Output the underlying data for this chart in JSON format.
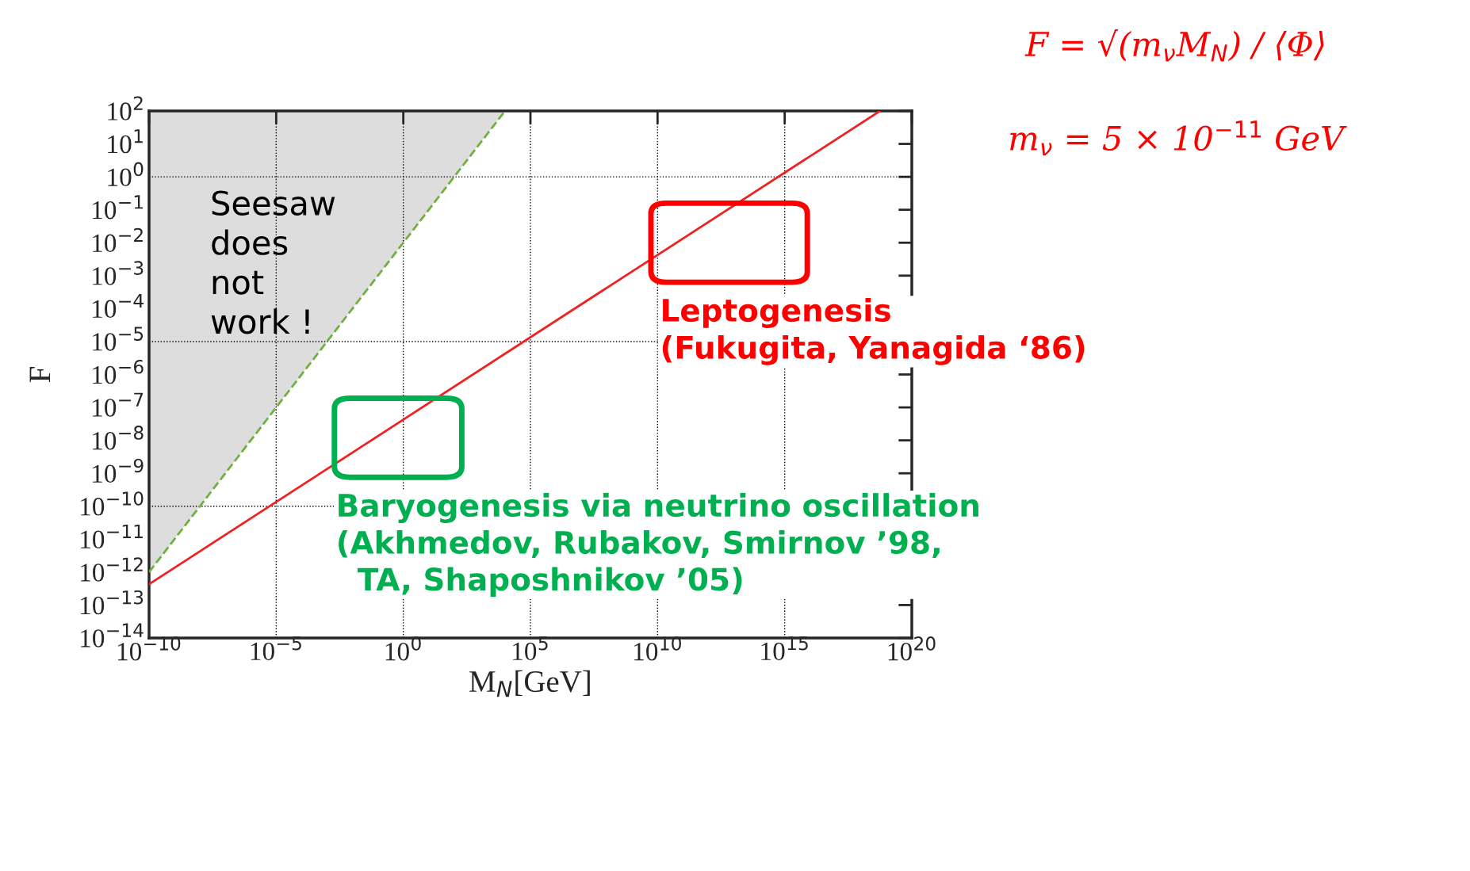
{
  "chart_data": {
    "type": "line",
    "xlabel": "M$_{N}$[GeV]",
    "ylabel": "F",
    "log": "xy",
    "grid": "x",
    "xlim": [
      1e-10,
      1e+20
    ],
    "ylim": [
      1e-14,
      100.0
    ],
    "xticks": [
      {
        "value": 1e-10,
        "label": "10$^{−10}$"
      },
      {
        "value": 1e-05,
        "label": "10$^{−5}$"
      },
      {
        "value": 1,
        "label": "10$^{0}$"
      },
      {
        "value": 100000.0,
        "label": "10$^{5}$"
      },
      {
        "value": 10000000000.0,
        "label": "10$^{10}$"
      },
      {
        "value": 1000000000000000.0,
        "label": "10$^{15}$"
      },
      {
        "value": 1e+20,
        "label": "10$^{20}$"
      }
    ],
    "yticks": [
      {
        "value": 1e-14,
        "label": "10$^{−14}$"
      },
      {
        "value": 1e-13,
        "label": "10$^{−13}$"
      },
      {
        "value": 1e-12,
        "label": "10$^{−12}$"
      },
      {
        "value": 1e-11,
        "label": "10$^{−11}$"
      },
      {
        "value": 1e-10,
        "label": "10$^{−10}$"
      },
      {
        "value": 1e-09,
        "label": "10$^{−9}$"
      },
      {
        "value": 1e-08,
        "label": "10$^{−8}$"
      },
      {
        "value": 1e-07,
        "label": "10$^{−7}$"
      },
      {
        "value": 1e-06,
        "label": "10$^{−6}$"
      },
      {
        "value": 1e-05,
        "label": "10$^{−5}$"
      },
      {
        "value": 0.0001,
        "label": "10$^{−4}$"
      },
      {
        "value": 0.001,
        "label": "10$^{−3}$"
      },
      {
        "value": 0.01,
        "label": "10$^{−2}$"
      },
      {
        "value": 0.1,
        "label": "10$^{−1}$"
      },
      {
        "value": 1,
        "label": "10$^{0}$"
      },
      {
        "value": 10,
        "label": "10$^{1}$"
      },
      {
        "value": 100,
        "label": "10$^{2}$"
      }
    ],
    "ref_lines": [
      {
        "axis": "y",
        "value": 1,
        "line_style": "dotted",
        "color": "#000000"
      },
      {
        "axis": "y",
        "value": 1e-05,
        "line_style": "dotted",
        "color": "#000000"
      },
      {
        "axis": "y",
        "value": 1e-10,
        "line_style": "dotted",
        "color": "#000000"
      }
    ],
    "series": [
      {
        "color": "#70b040",
        "line_style": "dashed",
        "x": [
          1e-10,
          10000.0
        ],
        "values": [
          1e-12,
          100
        ]
      },
      {
        "color": "#ee2222",
        "line_style": "solid",
        "x": [
          1e-10,
          5.6e+18
        ],
        "values": [
          4.3e-13,
          100
        ]
      }
    ],
    "annotations": [
      "F = √(m$_{ν}$M$_{N}$) / ⟨Φ⟩",
      "m$_{ν}$ = 5 × 10$^{−11}$ GeV",
      "Seesaw\ndoes\nnot\nwork !",
      "Leptogenesis\n(Fukugita, Yanagida ‘86)",
      "Baryogenesis via neutrino oscillation\n(Akhmedov, Rubakov, Smirnov ’98,\n  TA, Shaposhnikov ’05)"
    ]
  }
}
